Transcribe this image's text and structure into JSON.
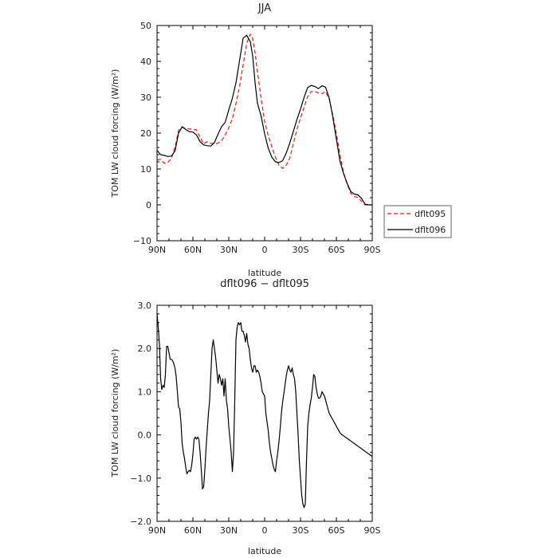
{
  "chart_data": [
    {
      "type": "line",
      "title": "JJA",
      "xlabel": "latitude",
      "ylabel": "TOM LW cloud forcing (W/m²)",
      "xlim": [
        90,
        -90
      ],
      "ylim": [
        -10,
        50
      ],
      "xticks": [
        90,
        60,
        30,
        0,
        -30,
        -60,
        -90
      ],
      "xtick_labels": [
        "90N",
        "60N",
        "30N",
        "0",
        "30S",
        "60S",
        "90S"
      ],
      "yticks": [
        -10,
        0,
        10,
        20,
        30,
        40,
        50
      ],
      "ytick_labels": [
        "−10",
        "0",
        "10",
        "20",
        "30",
        "40",
        "50"
      ],
      "grid": false,
      "legend": {
        "placement": "right",
        "entries": [
          "dflt095",
          "dflt096"
        ]
      },
      "series": [
        {
          "name": "dflt095",
          "color": "#e41a1c",
          "dash": "dashed",
          "x": [
            90,
            87,
            84,
            81,
            78,
            75,
            72,
            69,
            66,
            63,
            60,
            57,
            54,
            51,
            48,
            45,
            42,
            39,
            36,
            33,
            30,
            27,
            24,
            21,
            18,
            15,
            12,
            10,
            8,
            6,
            3,
            0,
            -3,
            -6,
            -9,
            -12,
            -15,
            -18,
            -21,
            -24,
            -27,
            -30,
            -33,
            -36,
            -39,
            -42,
            -45,
            -48,
            -51,
            -54,
            -57,
            -60,
            -63,
            -66,
            -69,
            -72,
            -75,
            -78,
            -81,
            -84,
            -87,
            -90
          ],
          "y": [
            12.5,
            12.7,
            11.6,
            11.8,
            12.9,
            16,
            20.8,
            21.6,
            21.3,
            21.2,
            21,
            20.9,
            18.8,
            17,
            17.6,
            17.2,
            16.9,
            17.2,
            17.9,
            19.5,
            21.5,
            24,
            28.2,
            33,
            39,
            45,
            47.6,
            46.4,
            42.4,
            37,
            29.8,
            23.2,
            19.3,
            16.2,
            13.3,
            11,
            10.2,
            11,
            13,
            17,
            21,
            24.2,
            27.2,
            30.2,
            31.6,
            31.6,
            31.2,
            31,
            31.6,
            29.5,
            25.1,
            19.8,
            14,
            9,
            5.8,
            3.2,
            2.3,
            2.1,
            1,
            0,
            0,
            0
          ]
        },
        {
          "name": "dflt096",
          "color": "#000000",
          "dash": "solid",
          "x": [
            90,
            87,
            84,
            81,
            78,
            75,
            72,
            69,
            66,
            63,
            60,
            57,
            54,
            51,
            48,
            45,
            42,
            39,
            36,
            33,
            30,
            27,
            24,
            21,
            18,
            15,
            12,
            10,
            8,
            6,
            3,
            0,
            -3,
            -6,
            -9,
            -12,
            -15,
            -18,
            -21,
            -24,
            -27,
            -30,
            -33,
            -36,
            -39,
            -42,
            -45,
            -48,
            -51,
            -54,
            -57,
            -60,
            -63,
            -66,
            -69,
            -72,
            -75,
            -78,
            -81,
            -84,
            -87,
            -90
          ],
          "y": [
            15.2,
            14,
            13.8,
            13.5,
            13.6,
            15,
            20,
            21.8,
            21,
            20.4,
            20.3,
            19.5,
            17.6,
            16.7,
            16.5,
            16.4,
            17.4,
            19.7,
            21.8,
            23,
            26.5,
            29.7,
            34,
            40.2,
            46.5,
            47.3,
            45.5,
            41.5,
            34,
            28.3,
            24.8,
            19.8,
            15.8,
            13.3,
            12,
            11.8,
            12.3,
            14.4,
            17.2,
            20.5,
            23.8,
            26.7,
            30,
            32.7,
            33.3,
            33,
            32.4,
            33.2,
            32.8,
            29.8,
            24.5,
            18.3,
            12.2,
            8.7,
            6,
            3.7,
            3,
            2.8,
            1.8,
            0.2,
            0,
            0
          ]
        }
      ]
    },
    {
      "type": "line",
      "title": "dflt096 − dflt095",
      "xlabel": "latitude",
      "ylabel": "TOM LW cloud forcing (W/m²)",
      "xlim": [
        90,
        -90
      ],
      "ylim": [
        -2,
        3
      ],
      "xticks": [
        90,
        60,
        30,
        0,
        -30,
        -60,
        -90
      ],
      "xtick_labels": [
        "90N",
        "60N",
        "30N",
        "0",
        "30S",
        "60S",
        "90S"
      ],
      "yticks": [
        -2,
        -1,
        0,
        1,
        2,
        3
      ],
      "ytick_labels": [
        "−2.0",
        "−1.0",
        "0.0",
        "1.0",
        "2.0",
        "3.0"
      ],
      "grid": false,
      "series": [
        {
          "color": "#000000",
          "dash": "solid",
          "x": [
            90,
            89,
            88,
            87,
            86,
            85,
            84,
            83,
            82,
            81,
            80,
            79,
            78,
            77,
            76,
            75,
            74,
            73,
            72,
            71,
            70,
            69,
            68,
            67,
            66,
            65,
            64,
            63,
            62,
            61,
            60,
            59,
            58,
            57,
            56,
            55,
            54,
            53,
            52,
            51,
            50,
            49,
            48,
            47,
            46,
            45,
            44,
            43,
            42,
            41,
            40,
            39,
            38,
            37,
            36,
            35,
            34,
            33,
            32,
            31,
            30,
            29,
            28,
            27,
            26,
            25,
            24,
            23,
            22,
            21,
            20,
            19,
            18,
            17,
            16,
            15,
            14,
            13,
            12,
            11,
            10,
            9,
            8,
            7,
            6,
            5,
            4,
            3,
            2,
            1,
            0,
            -1,
            -2,
            -3,
            -4,
            -5,
            -6,
            -7,
            -8,
            -9,
            -10,
            -11,
            -12,
            -13,
            -14,
            -15,
            -16,
            -17,
            -18,
            -19,
            -20,
            -21,
            -22,
            -23,
            -24,
            -25,
            -26,
            -27,
            -28,
            -29,
            -30,
            -31,
            -32,
            -33,
            -34,
            -35,
            -36,
            -37,
            -38,
            -39,
            -40,
            -41,
            -42,
            -43,
            -44,
            -45,
            -46,
            -47,
            -48,
            -49,
            -50,
            -51,
            -52,
            -53,
            -54,
            -55,
            -56,
            -57,
            -58,
            -59,
            -60,
            -61,
            -62,
            -63,
            -64,
            -65,
            -66,
            -67,
            -68,
            -69,
            -70,
            -71,
            -72,
            -73,
            -74,
            -75,
            -76,
            -77,
            -78,
            -79,
            -80,
            -81,
            -82,
            -83,
            -84,
            -85,
            -86,
            -87,
            -88,
            -89,
            -90
          ],
          "y": [
            2.8,
            2.5,
            2.1,
            1.3,
            1.05,
            1.15,
            1.1,
            1.4,
            2.05,
            2.05,
            1.9,
            1.75,
            1.75,
            1.72,
            1.65,
            1.55,
            1.35,
            1.0,
            0.65,
            0.6,
            0.3,
            -0.2,
            -0.4,
            -0.55,
            -0.75,
            -0.9,
            -0.85,
            -0.82,
            -0.85,
            -0.7,
            -0.45,
            -0.1,
            -0.05,
            -0.1,
            -0.05,
            -0.1,
            -0.4,
            -0.8,
            -1.25,
            -1.2,
            -0.8,
            -0.3,
            0.1,
            0.5,
            0.8,
            1.4,
            2.0,
            2.2,
            2.0,
            1.8,
            1.5,
            1.2,
            1.4,
            1.3,
            1.15,
            1.3,
            0.9,
            1.3,
            0.8,
            0.6,
            0.2,
            -0.1,
            -0.4,
            -0.85,
            -0.4,
            0.8,
            2.2,
            2.5,
            2.6,
            2.55,
            2.6,
            2.4,
            2.4,
            2.3,
            2.15,
            2.35,
            2.1,
            2.0,
            1.75,
            1.55,
            1.45,
            1.6,
            1.6,
            1.45,
            1.5,
            1.45,
            1.35,
            1.2,
            1.0,
            0.95,
            0.9,
            0.5,
            0.3,
            0.1,
            -0.2,
            -0.4,
            -0.55,
            -0.7,
            -0.8,
            -0.85,
            -0.6,
            -0.4,
            -0.15,
            0.15,
            0.5,
            0.75,
            0.95,
            1.15,
            1.35,
            1.5,
            1.6,
            1.5,
            1.45,
            1.55,
            1.4,
            1.3,
            1.0,
            0.5,
            0.0,
            -0.6,
            -1.0,
            -1.4,
            -1.6,
            -1.68,
            -1.6,
            -0.6,
            0.2,
            0.5,
            0.7,
            0.85,
            1.1,
            1.4,
            1.35,
            1.1,
            0.95,
            0.85,
            0.85,
            0.9,
            1.0,
            0.95,
            0.9,
            0.8,
            0.7,
            0.6,
            0.5,
            0.45,
            0.4,
            0.35,
            0.3,
            0.25,
            0.2,
            0.15,
            0.1,
            0.05,
            0.02,
            0.0,
            -0.02,
            -0.04,
            -0.06,
            -0.08,
            -0.1,
            -0.12,
            -0.14,
            -0.16,
            -0.18,
            -0.2,
            -0.22,
            -0.24,
            -0.26,
            -0.28,
            -0.3,
            -0.32,
            -0.34,
            -0.36,
            -0.38,
            -0.4,
            -0.42,
            -0.44,
            -0.46,
            -0.48,
            -0.5
          ]
        }
      ]
    }
  ]
}
